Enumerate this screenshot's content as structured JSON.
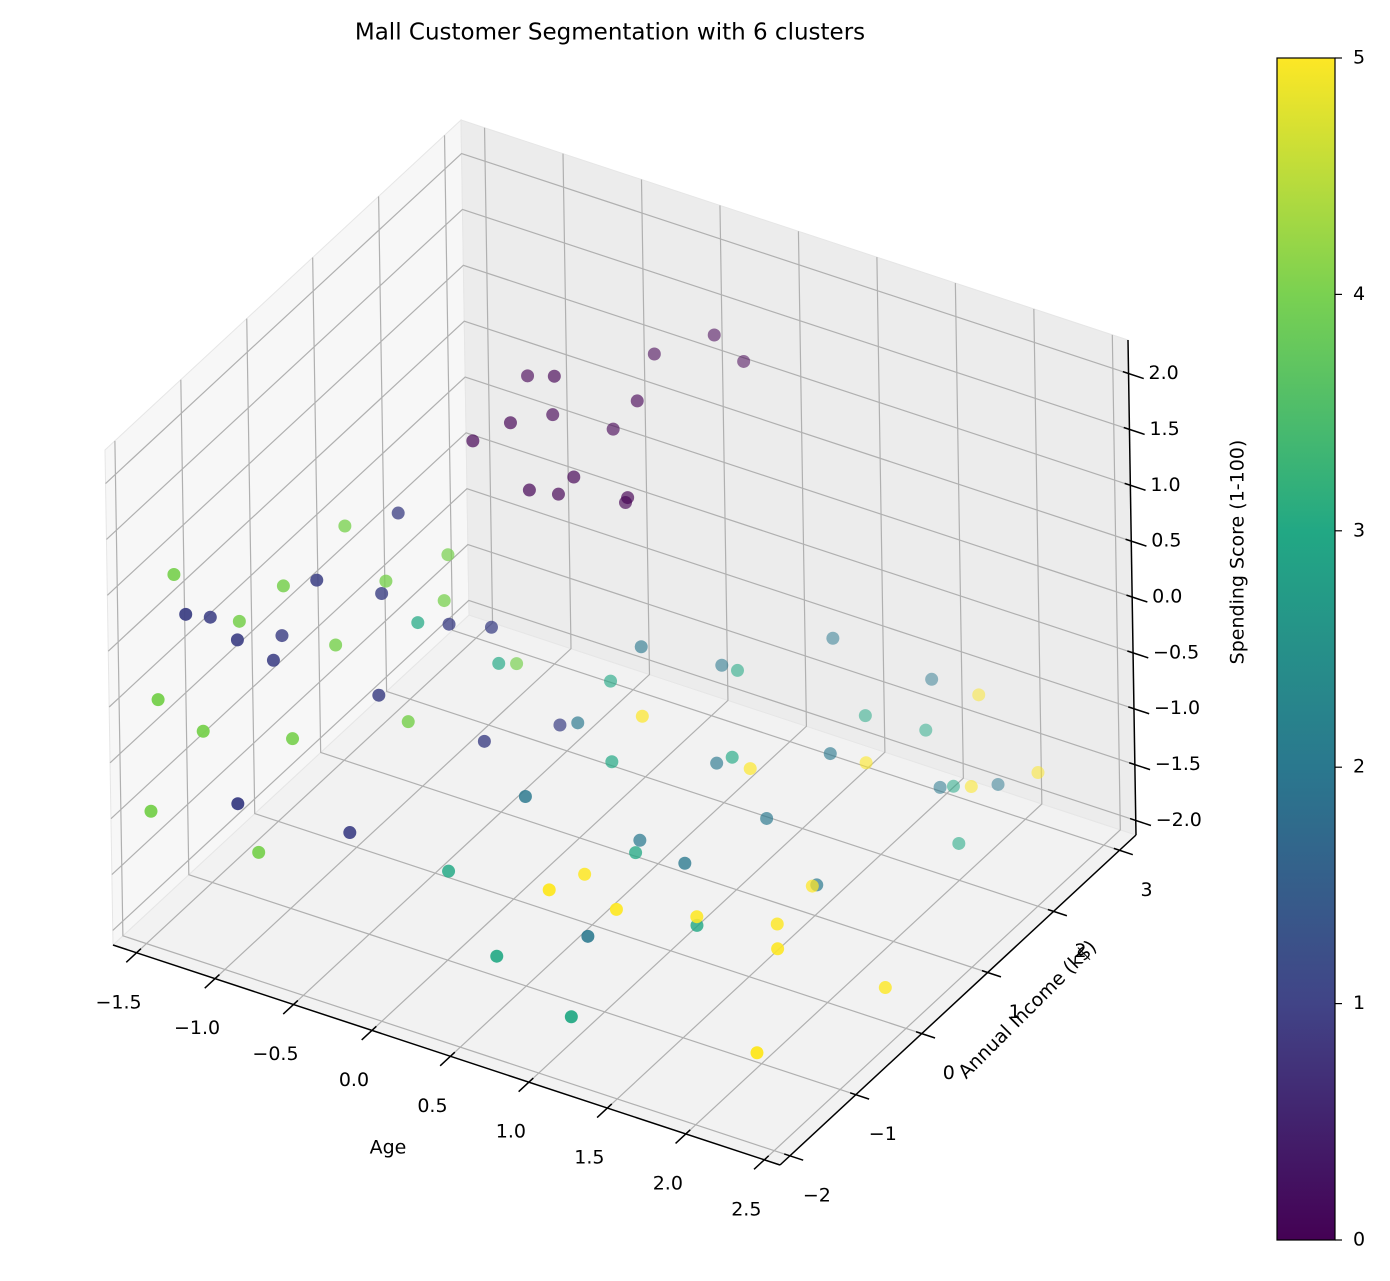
{
  "chart_data": {
    "type": "scatter3d",
    "title": "Mall Customer Segmentation with 6 clusters",
    "xlabel": "Age",
    "ylabel": "Annual Income (k$)",
    "zlabel": "Spending Score (1-100)",
    "grid": true,
    "xlim": [
      -1.65,
      2.6
    ],
    "ylim": [
      -2.15,
      3.25
    ],
    "zlim": [
      -2.13,
      2.3
    ],
    "xticks": [
      {
        "value": -1.5,
        "label": "−1.5"
      },
      {
        "value": -1.0,
        "label": "−1.0"
      },
      {
        "value": -0.5,
        "label": "−0.5"
      },
      {
        "value": 0,
        "label": "0.0"
      },
      0.5,
      {
        "value": 1,
        "label": "1.0"
      },
      1.5,
      {
        "value": 2,
        "label": "2.0"
      },
      2.5
    ],
    "yticks": [
      {
        "value": -2,
        "label": "−2"
      },
      {
        "value": -1,
        "label": "−1"
      },
      0,
      1,
      2,
      3
    ],
    "zticks": [
      {
        "value": -2,
        "label": "−2.0"
      },
      {
        "value": -1.5,
        "label": "−1.5"
      },
      {
        "value": -1,
        "label": "−1.0"
      },
      {
        "value": -0.5,
        "label": "−0.5"
      },
      {
        "value": 0,
        "label": "0.0"
      },
      0.5,
      {
        "value": 1,
        "label": "1.0"
      },
      1.5,
      {
        "value": 2,
        "label": "2.0"
      }
    ],
    "x": [
      -0.4,
      -0.2,
      0.0,
      0.2,
      -0.6,
      -0.3,
      0.1,
      0.4,
      -0.1,
      0.3,
      -0.5,
      0.0,
      0.5,
      -0.2,
      0.2,
      -1.3,
      -1.1,
      -1.0,
      -0.8,
      -0.6,
      -0.5,
      -0.3,
      -0.2,
      0.0,
      -1.4,
      -0.9,
      -0.4,
      -0.7,
      -1.2,
      0.1,
      0.2,
      0.5,
      0.8,
      1.0,
      1.2,
      1.5,
      1.8,
      0.0,
      0.6,
      1.1,
      1.4,
      2.0,
      0.3,
      0.9,
      1.6,
      -0.8,
      -0.5,
      0.0,
      0.3,
      0.6,
      0.9,
      1.2,
      1.5,
      1.8,
      -0.2,
      0.4,
      1.0,
      0.7,
      2.0,
      1.3,
      -1.5,
      -1.3,
      -1.1,
      -0.9,
      -0.7,
      -0.5,
      -1.4,
      -1.2,
      -0.8,
      -0.6,
      -1.0,
      -0.4,
      -1.5,
      -0.9,
      -0.3,
      1.0,
      1.3,
      1.6,
      1.9,
      2.2,
      2.4,
      0.8,
      1.5,
      2.0,
      2.3,
      1.1,
      1.7,
      2.5,
      0.5,
      1.8
    ],
    "y": [
      1.0,
      1.2,
      1.0,
      1.5,
      0.9,
      1.4,
      2.0,
      2.2,
      1.0,
      1.1,
      1.5,
      1.6,
      2.4,
      0.8,
      1.3,
      -1.8,
      -1.5,
      -1.2,
      -1.0,
      -0.5,
      -0.8,
      -0.2,
      0.2,
      -0.4,
      -1.2,
      -2.0,
      -1.5,
      0.0,
      -0.6,
      0.5,
      1.5,
      2.0,
      1.2,
      2.5,
      1.0,
      2.8,
      2.2,
      1.0,
      0.5,
      0.0,
      1.5,
      2.6,
      -0.5,
      -1.0,
      0.8,
      0.5,
      1.0,
      1.5,
      0.8,
      2.0,
      1.2,
      2.5,
      2.7,
      2.4,
      -0.5,
      -1.2,
      -1.5,
      0.2,
      2.0,
      -0.3,
      -1.5,
      -1.0,
      -0.8,
      -0.5,
      -0.2,
      0.2,
      -2.0,
      -1.8,
      -1.4,
      0.5,
      -0.1,
      -0.6,
      -1.9,
      -1.7,
      0.8,
      -1.8,
      -1.5,
      -1.0,
      -0.5,
      -1.2,
      -2.0,
      -0.8,
      1.8,
      2.2,
      2.5,
      1.0,
      0.5,
      -0.3,
      0.8,
      2.8
    ],
    "z": [
      1.4,
      1.8,
      1.1,
      1.6,
      1.2,
      1.3,
      1.7,
      1.9,
      0.9,
      1.0,
      1.5,
      1.2,
      1.6,
      1.0,
      0.8,
      0.8,
      0.5,
      0.2,
      0.9,
      0.6,
      -0.1,
      0.3,
      0.1,
      -0.5,
      0.4,
      -0.6,
      -0.9,
      1.0,
      0.0,
      -0.8,
      -0.6,
      -0.9,
      -1.2,
      -0.7,
      -1.4,
      -1.0,
      -1.5,
      -1.1,
      -1.6,
      -1.3,
      -1.0,
      -1.6,
      -0.8,
      -1.5,
      -1.7,
      -0.3,
      -0.8,
      -1.0,
      -1.2,
      -0.9,
      -1.1,
      -1.3,
      -1.4,
      -1.6,
      -1.7,
      -1.8,
      -1.9,
      -1.5,
      -1.8,
      -1.6,
      0.9,
      0.3,
      0.6,
      0.0,
      0.5,
      0.2,
      0.1,
      -0.2,
      -0.3,
      0.4,
      0.8,
      -0.4,
      -1.0,
      -1.2,
      -0.6,
      -0.6,
      -0.8,
      -1.0,
      -1.2,
      -0.9,
      -1.3,
      -1.1,
      -1.2,
      -1.4,
      -1.3,
      -1.0,
      -1.5,
      -1.6,
      -0.7,
      -1.0
    ],
    "cluster": [
      0,
      0,
      0,
      0,
      0,
      0,
      0,
      0,
      0,
      0,
      0,
      0,
      0,
      0,
      0,
      1,
      1,
      1,
      1,
      1,
      1,
      1,
      1,
      1,
      1,
      1,
      1,
      1,
      1,
      1,
      2,
      2,
      2,
      2,
      2,
      2,
      2,
      2,
      2,
      2,
      2,
      2,
      2,
      2,
      2,
      3,
      3,
      3,
      3,
      3,
      3,
      3,
      3,
      3,
      3,
      3,
      3,
      3,
      3,
      3,
      4,
      4,
      4,
      4,
      4,
      4,
      4,
      4,
      4,
      4,
      4,
      4,
      4,
      4,
      4,
      5,
      5,
      5,
      5,
      5,
      5,
      5,
      5,
      5,
      5,
      5,
      5,
      5,
      5,
      5
    ],
    "colorbar": {
      "clim": [
        0,
        5
      ],
      "ticks": [
        0,
        1,
        2,
        3,
        4,
        5
      ],
      "colors": [
        "#440154",
        "#414487",
        "#2a788e",
        "#22a884",
        "#7ad151",
        "#fde725"
      ]
    }
  }
}
